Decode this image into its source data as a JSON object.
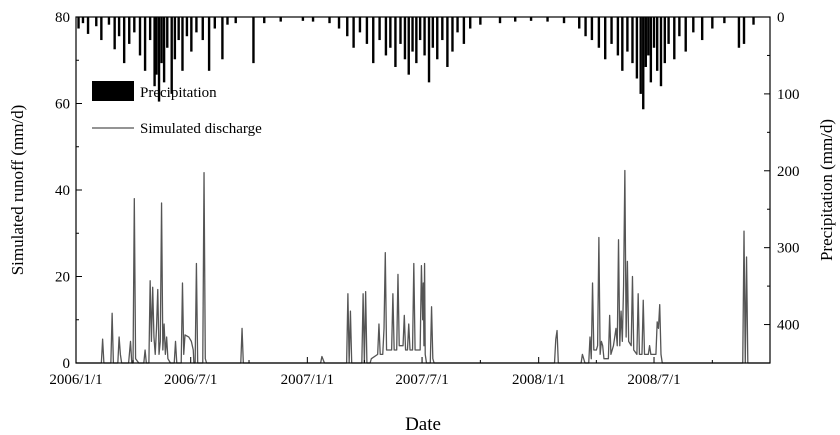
{
  "chart_data": {
    "type": "line",
    "title": "",
    "xlabel": "Date",
    "ylabel": "Simulated runoff (mm/d)",
    "y2label": "Precipitation (mm/d)",
    "x_range": [
      "2006-01-01",
      "2008-12-31"
    ],
    "x_ticks": [
      "2006/1/1",
      "2006/7/1",
      "2007/1/1",
      "2007/7/1",
      "2008/1/1",
      "2008/7/1"
    ],
    "ylim": [
      0,
      80
    ],
    "y_ticks": [
      0,
      20,
      40,
      60,
      80
    ],
    "y2lim": [
      0,
      450
    ],
    "y2_ticks": [
      0,
      100,
      200,
      300,
      400
    ],
    "y2_inverted": true,
    "grid": false,
    "legend": {
      "placement": "upper-left",
      "entries": [
        {
          "label": "Precipitation",
          "style": "bar",
          "color": "#000000"
        },
        {
          "label": "Simulated discharge",
          "style": "line",
          "color": "#555555"
        }
      ]
    },
    "series": [
      {
        "name": "Precipitation",
        "axis": "right",
        "style": "bar",
        "color": "#000000",
        "points": [
          [
            "2006-01-05",
            15
          ],
          [
            "2006-01-12",
            8
          ],
          [
            "2006-01-20",
            22
          ],
          [
            "2006-02-02",
            12
          ],
          [
            "2006-02-10",
            30
          ],
          [
            "2006-02-22",
            10
          ],
          [
            "2006-03-03",
            42
          ],
          [
            "2006-03-10",
            25
          ],
          [
            "2006-03-18",
            60
          ],
          [
            "2006-03-26",
            35
          ],
          [
            "2006-04-03",
            20
          ],
          [
            "2006-04-12",
            50
          ],
          [
            "2006-04-20",
            70
          ],
          [
            "2006-04-28",
            30
          ],
          [
            "2006-05-05",
            90
          ],
          [
            "2006-05-08",
            75
          ],
          [
            "2006-05-12",
            110
          ],
          [
            "2006-05-16",
            60
          ],
          [
            "2006-05-20",
            85
          ],
          [
            "2006-05-25",
            40
          ],
          [
            "2006-06-01",
            100
          ],
          [
            "2006-06-06",
            55
          ],
          [
            "2006-06-12",
            30
          ],
          [
            "2006-06-18",
            70
          ],
          [
            "2006-06-25",
            25
          ],
          [
            "2006-07-02",
            45
          ],
          [
            "2006-07-10",
            20
          ],
          [
            "2006-07-20",
            30
          ],
          [
            "2006-07-30",
            70
          ],
          [
            "2006-08-08",
            15
          ],
          [
            "2006-08-20",
            55
          ],
          [
            "2006-08-28",
            10
          ],
          [
            "2006-09-10",
            8
          ],
          [
            "2006-10-08",
            60
          ],
          [
            "2006-10-25",
            8
          ],
          [
            "2006-11-20",
            6
          ],
          [
            "2006-12-25",
            5
          ],
          [
            "2007-01-10",
            6
          ],
          [
            "2007-02-05",
            8
          ],
          [
            "2007-02-20",
            15
          ],
          [
            "2007-03-05",
            25
          ],
          [
            "2007-03-15",
            40
          ],
          [
            "2007-03-25",
            20
          ],
          [
            "2007-04-05",
            35
          ],
          [
            "2007-04-15",
            60
          ],
          [
            "2007-04-25",
            30
          ],
          [
            "2007-05-05",
            50
          ],
          [
            "2007-05-12",
            40
          ],
          [
            "2007-05-20",
            65
          ],
          [
            "2007-05-28",
            35
          ],
          [
            "2007-06-04",
            55
          ],
          [
            "2007-06-10",
            75
          ],
          [
            "2007-06-16",
            45
          ],
          [
            "2007-06-22",
            60
          ],
          [
            "2007-06-28",
            30
          ],
          [
            "2007-07-05",
            50
          ],
          [
            "2007-07-12",
            85
          ],
          [
            "2007-07-18",
            40
          ],
          [
            "2007-07-25",
            55
          ],
          [
            "2007-08-02",
            30
          ],
          [
            "2007-08-10",
            65
          ],
          [
            "2007-08-18",
            45
          ],
          [
            "2007-08-26",
            20
          ],
          [
            "2007-09-05",
            35
          ],
          [
            "2007-09-15",
            15
          ],
          [
            "2007-10-01",
            10
          ],
          [
            "2007-11-01",
            8
          ],
          [
            "2007-11-25",
            6
          ],
          [
            "2007-12-20",
            5
          ],
          [
            "2008-01-15",
            6
          ],
          [
            "2008-02-10",
            8
          ],
          [
            "2008-03-05",
            15
          ],
          [
            "2008-03-15",
            25
          ],
          [
            "2008-03-25",
            30
          ],
          [
            "2008-04-05",
            40
          ],
          [
            "2008-04-15",
            55
          ],
          [
            "2008-04-25",
            35
          ],
          [
            "2008-05-05",
            50
          ],
          [
            "2008-05-12",
            70
          ],
          [
            "2008-05-20",
            45
          ],
          [
            "2008-05-28",
            60
          ],
          [
            "2008-06-04",
            80
          ],
          [
            "2008-06-10",
            100
          ],
          [
            "2008-06-14",
            120
          ],
          [
            "2008-06-18",
            65
          ],
          [
            "2008-06-22",
            50
          ],
          [
            "2008-06-26",
            85
          ],
          [
            "2008-07-01",
            40
          ],
          [
            "2008-07-06",
            70
          ],
          [
            "2008-07-12",
            90
          ],
          [
            "2008-07-18",
            60
          ],
          [
            "2008-07-24",
            35
          ],
          [
            "2008-08-02",
            55
          ],
          [
            "2008-08-10",
            25
          ],
          [
            "2008-08-20",
            45
          ],
          [
            "2008-09-01",
            20
          ],
          [
            "2008-09-15",
            30
          ],
          [
            "2008-10-01",
            15
          ],
          [
            "2008-10-20",
            8
          ],
          [
            "2008-11-12",
            40
          ],
          [
            "2008-11-20",
            35
          ],
          [
            "2008-12-05",
            10
          ]
        ]
      },
      {
        "name": "Simulated discharge",
        "axis": "left",
        "style": "line",
        "color": "#555555",
        "points": [
          [
            "2006-01-01",
            0
          ],
          [
            "2006-02-10",
            0
          ],
          [
            "2006-02-12",
            5.5
          ],
          [
            "2006-02-14",
            0
          ],
          [
            "2006-02-25",
            0
          ],
          [
            "2006-02-27",
            11.5
          ],
          [
            "2006-03-01",
            0
          ],
          [
            "2006-03-08",
            0
          ],
          [
            "2006-03-10",
            6
          ],
          [
            "2006-03-12",
            2
          ],
          [
            "2006-03-14",
            0
          ],
          [
            "2006-03-25",
            0
          ],
          [
            "2006-03-28",
            5
          ],
          [
            "2006-03-30",
            0
          ],
          [
            "2006-04-01",
            0
          ],
          [
            "2006-04-03",
            38
          ],
          [
            "2006-04-05",
            1
          ],
          [
            "2006-04-10",
            0
          ],
          [
            "2006-04-18",
            0
          ],
          [
            "2006-04-20",
            3
          ],
          [
            "2006-04-22",
            0
          ],
          [
            "2006-04-26",
            0
          ],
          [
            "2006-04-28",
            19
          ],
          [
            "2006-04-30",
            5
          ],
          [
            "2006-05-02",
            17.5
          ],
          [
            "2006-05-04",
            6
          ],
          [
            "2006-05-06",
            2
          ],
          [
            "2006-05-08",
            8
          ],
          [
            "2006-05-10",
            17
          ],
          [
            "2006-05-12",
            2
          ],
          [
            "2006-05-14",
            5
          ],
          [
            "2006-05-16",
            37
          ],
          [
            "2006-05-18",
            3
          ],
          [
            "2006-05-20",
            9
          ],
          [
            "2006-05-22",
            2
          ],
          [
            "2006-05-24",
            6
          ],
          [
            "2006-05-26",
            1
          ],
          [
            "2006-05-30",
            0
          ],
          [
            "2006-06-05",
            0
          ],
          [
            "2006-06-07",
            5
          ],
          [
            "2006-06-09",
            0
          ],
          [
            "2006-06-16",
            0
          ],
          [
            "2006-06-18",
            18.5
          ],
          [
            "2006-06-20",
            2
          ],
          [
            "2006-06-22",
            6.5
          ],
          [
            "2006-06-28",
            6
          ],
          [
            "2006-07-02",
            5
          ],
          [
            "2006-07-05",
            3
          ],
          [
            "2006-07-06",
            0
          ],
          [
            "2006-07-08",
            0
          ],
          [
            "2006-07-10",
            23
          ],
          [
            "2006-07-12",
            0
          ],
          [
            "2006-07-20",
            0
          ],
          [
            "2006-07-22",
            44
          ],
          [
            "2006-07-24",
            1
          ],
          [
            "2006-07-26",
            0
          ],
          [
            "2006-09-18",
            0
          ],
          [
            "2006-09-20",
            8
          ],
          [
            "2006-09-22",
            0
          ],
          [
            "2007-01-22",
            0
          ],
          [
            "2007-01-24",
            1.5
          ],
          [
            "2007-01-28",
            0
          ],
          [
            "2007-03-04",
            0
          ],
          [
            "2007-03-06",
            16
          ],
          [
            "2007-03-08",
            0
          ],
          [
            "2007-03-10",
            12
          ],
          [
            "2007-03-12",
            0
          ],
          [
            "2007-03-28",
            0
          ],
          [
            "2007-03-30",
            16
          ],
          [
            "2007-04-01",
            0
          ],
          [
            "2007-04-03",
            16.5
          ],
          [
            "2007-04-05",
            0
          ],
          [
            "2007-04-10",
            0
          ],
          [
            "2007-04-12",
            1
          ],
          [
            "2007-04-22",
            2
          ],
          [
            "2007-04-24",
            9
          ],
          [
            "2007-04-26",
            2
          ],
          [
            "2007-04-30",
            2
          ],
          [
            "2007-05-02",
            8
          ],
          [
            "2007-05-04",
            25.5
          ],
          [
            "2007-05-06",
            3
          ],
          [
            "2007-05-14",
            3
          ],
          [
            "2007-05-16",
            16
          ],
          [
            "2007-05-18",
            3
          ],
          [
            "2007-05-22",
            3
          ],
          [
            "2007-05-24",
            20.5
          ],
          [
            "2007-05-26",
            4
          ],
          [
            "2007-06-01",
            4
          ],
          [
            "2007-06-03",
            11
          ],
          [
            "2007-06-05",
            3
          ],
          [
            "2007-06-08",
            3
          ],
          [
            "2007-06-10",
            9
          ],
          [
            "2007-06-12",
            3
          ],
          [
            "2007-06-16",
            3
          ],
          [
            "2007-06-18",
            23
          ],
          [
            "2007-06-20",
            3
          ],
          [
            "2007-06-28",
            3
          ],
          [
            "2007-06-30",
            22.5
          ],
          [
            "2007-07-02",
            10
          ],
          [
            "2007-07-03",
            18.5
          ],
          [
            "2007-07-04",
            4
          ],
          [
            "2007-07-05",
            23
          ],
          [
            "2007-07-06",
            2
          ],
          [
            "2007-07-08",
            0
          ],
          [
            "2007-07-14",
            0
          ],
          [
            "2007-07-16",
            13
          ],
          [
            "2007-07-18",
            1
          ],
          [
            "2007-07-20",
            0
          ],
          [
            "2008-01-26",
            0
          ],
          [
            "2008-01-28",
            5.5
          ],
          [
            "2008-01-30",
            7.5
          ],
          [
            "2008-02-01",
            0
          ],
          [
            "2008-03-08",
            0
          ],
          [
            "2008-03-10",
            2
          ],
          [
            "2008-03-14",
            0
          ],
          [
            "2008-03-20",
            0
          ],
          [
            "2008-03-22",
            6
          ],
          [
            "2008-03-24",
            1
          ],
          [
            "2008-03-26",
            18.5
          ],
          [
            "2008-03-28",
            3
          ],
          [
            "2008-04-01",
            3
          ],
          [
            "2008-04-03",
            4
          ],
          [
            "2008-04-05",
            29
          ],
          [
            "2008-04-07",
            2
          ],
          [
            "2008-04-09",
            5
          ],
          [
            "2008-04-11",
            4
          ],
          [
            "2008-04-13",
            1
          ],
          [
            "2008-04-20",
            1
          ],
          [
            "2008-04-22",
            11
          ],
          [
            "2008-04-24",
            2
          ],
          [
            "2008-04-28",
            4
          ],
          [
            "2008-05-02",
            8
          ],
          [
            "2008-05-04",
            4
          ],
          [
            "2008-05-06",
            28.5
          ],
          [
            "2008-05-08",
            4
          ],
          [
            "2008-05-10",
            12
          ],
          [
            "2008-05-12",
            5
          ],
          [
            "2008-05-14",
            18
          ],
          [
            "2008-05-16",
            44.5
          ],
          [
            "2008-05-18",
            6
          ],
          [
            "2008-05-20",
            23.5
          ],
          [
            "2008-05-22",
            5
          ],
          [
            "2008-05-26",
            4
          ],
          [
            "2008-05-28",
            20
          ],
          [
            "2008-05-30",
            3
          ],
          [
            "2008-06-04",
            2
          ],
          [
            "2008-06-06",
            16
          ],
          [
            "2008-06-08",
            2
          ],
          [
            "2008-06-12",
            2
          ],
          [
            "2008-06-14",
            14.5
          ],
          [
            "2008-06-16",
            2
          ],
          [
            "2008-06-22",
            2
          ],
          [
            "2008-06-24",
            4
          ],
          [
            "2008-06-26",
            2
          ],
          [
            "2008-07-04",
            2
          ],
          [
            "2008-07-06",
            9.5
          ],
          [
            "2008-07-08",
            8
          ],
          [
            "2008-07-10",
            13.5
          ],
          [
            "2008-07-12",
            2
          ],
          [
            "2008-07-14",
            0
          ],
          [
            "2008-11-18",
            0
          ],
          [
            "2008-11-20",
            30.5
          ],
          [
            "2008-11-22",
            0
          ],
          [
            "2008-11-24",
            24.5
          ],
          [
            "2008-11-26",
            0
          ],
          [
            "2008-12-31",
            0
          ]
        ]
      }
    ]
  }
}
